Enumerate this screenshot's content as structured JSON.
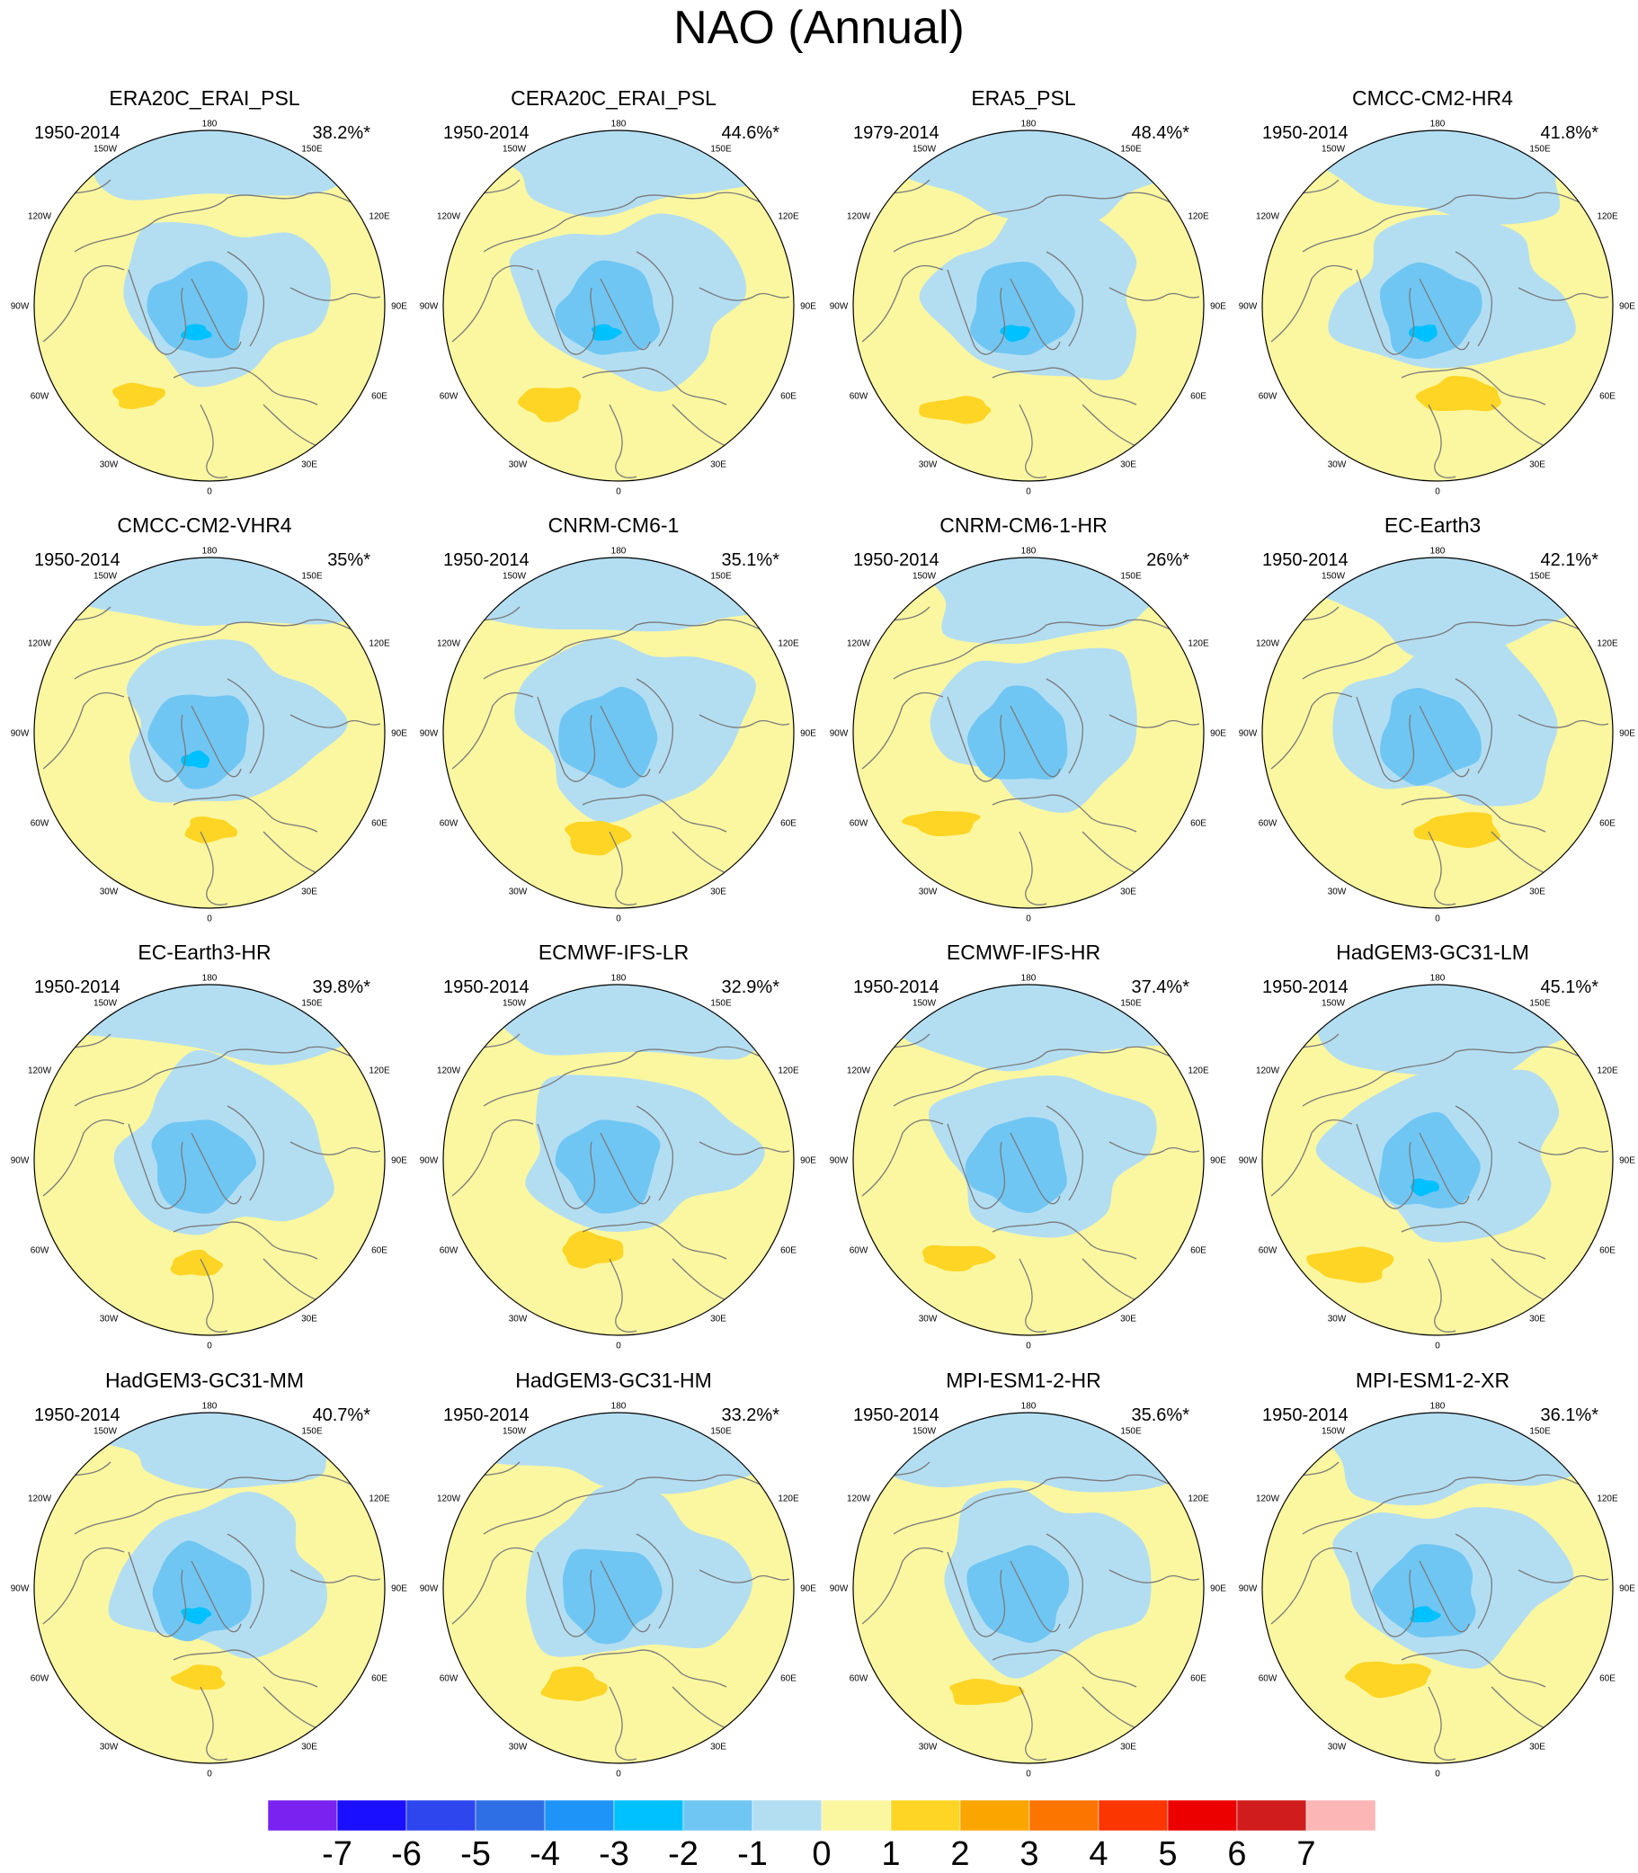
{
  "title": "NAO (Annual)",
  "colors": {
    "cb_colors": [
      "#7a22f0",
      "#1b0fff",
      "#2d46ee",
      "#2f6fe6",
      "#1e94f8",
      "#00c1ff",
      "#70c6f3",
      "#b3def2",
      "#fbf7a0",
      "#fed524",
      "#fba500",
      "#fc7500",
      "#fc3600",
      "#ec0000",
      "#d01c1c",
      "#fcb6b6"
    ],
    "land_outline": "#7a7a7a",
    "circle_border": "#000000"
  },
  "colorbar": {
    "labels": [
      "-7",
      "-6",
      "-5",
      "-4",
      "-3",
      "-2",
      "-1",
      "0",
      "1",
      "2",
      "3",
      "4",
      "5",
      "6",
      "7"
    ]
  },
  "map_labels": [
    "180",
    "150W",
    "150E",
    "120W",
    "120E",
    "90W",
    "90E",
    "60W",
    "60E",
    "30W",
    "30E",
    "0"
  ],
  "panels": [
    {
      "title": "ERA20C_ERAI_PSL",
      "period": "1950-2014",
      "pct": "38.2%*"
    },
    {
      "title": "CERA20C_ERAI_PSL",
      "period": "1950-2014",
      "pct": "44.6%*"
    },
    {
      "title": "ERA5_PSL",
      "period": "1979-2014",
      "pct": "48.4%*"
    },
    {
      "title": "CMCC-CM2-HR4",
      "period": "1950-2014",
      "pct": "41.8%*"
    },
    {
      "title": "CMCC-CM2-VHR4",
      "period": "1950-2014",
      "pct": "35%*"
    },
    {
      "title": "CNRM-CM6-1",
      "period": "1950-2014",
      "pct": "35.1%*"
    },
    {
      "title": "CNRM-CM6-1-HR",
      "period": "1950-2014",
      "pct": "26%*"
    },
    {
      "title": "EC-Earth3",
      "period": "1950-2014",
      "pct": "42.1%*"
    },
    {
      "title": "EC-Earth3-HR",
      "period": "1950-2014",
      "pct": "39.8%*"
    },
    {
      "title": "ECMWF-IFS-LR",
      "period": "1950-2014",
      "pct": "32.9%*"
    },
    {
      "title": "ECMWF-IFS-HR",
      "period": "1950-2014",
      "pct": "37.4%*"
    },
    {
      "title": "HadGEM3-GC31-LM",
      "period": "1950-2014",
      "pct": "45.1%*"
    },
    {
      "title": "HadGEM3-GC31-MM",
      "period": "1950-2014",
      "pct": "40.7%*"
    },
    {
      "title": "HadGEM3-GC31-HM",
      "period": "1950-2014",
      "pct": "33.2%*"
    },
    {
      "title": "MPI-ESM1-2-HR",
      "period": "1950-2014",
      "pct": "35.6%*"
    },
    {
      "title": "MPI-ESM1-2-XR",
      "period": "1950-2014",
      "pct": "36.1%*"
    }
  ],
  "chart_data": {
    "type": "heatmap",
    "title": "NAO (Annual)",
    "projection": "north polar stereographic",
    "legend_placement": "bottom",
    "color_levels": [
      -7,
      -6,
      -5,
      -4,
      -3,
      -2,
      -1,
      0,
      1,
      2,
      3,
      4,
      5,
      6,
      7
    ],
    "panel_count": 16,
    "layout": "4x4"
  }
}
